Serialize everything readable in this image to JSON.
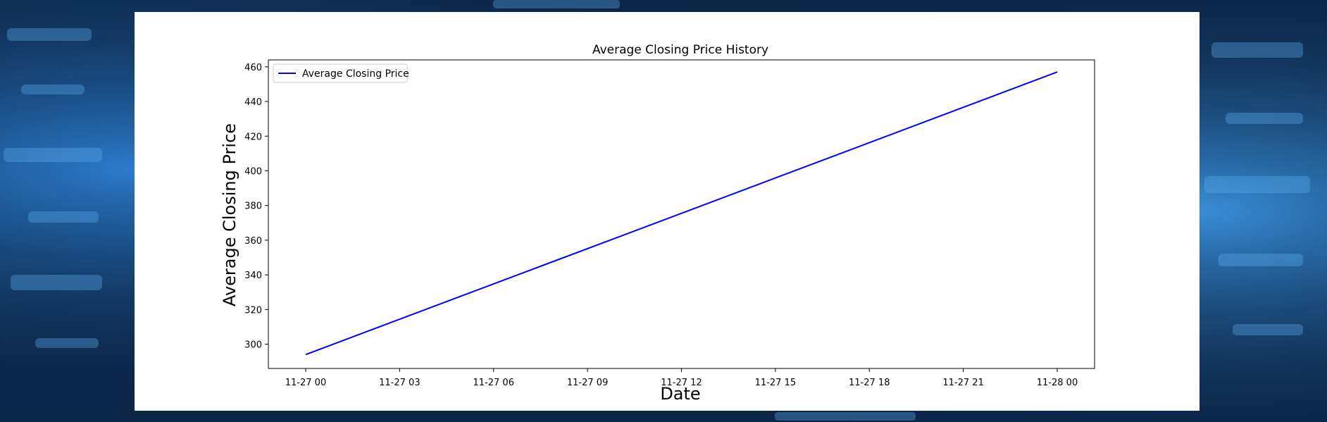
{
  "colors": {
    "series": "#0000ff",
    "background_dark": "#0b2547",
    "background_accent": "#2f86d9"
  },
  "chart_data": {
    "type": "line",
    "title": "Average Closing Price History",
    "xlabel": "Date",
    "ylabel": "Average Closing Price",
    "x_tick_labels": [
      "11-27 00",
      "11-27 03",
      "11-27 06",
      "11-27 09",
      "11-27 12",
      "11-27 15",
      "11-27 18",
      "11-27 21",
      "11-28 00"
    ],
    "y_ticks": [
      300,
      320,
      340,
      360,
      380,
      400,
      420,
      440,
      460
    ],
    "xlim": [
      "11-26 22:48",
      "11-28 01:12"
    ],
    "ylim": [
      286,
      464
    ],
    "legend_position": "top-left",
    "grid": false,
    "series": [
      {
        "name": "Average Closing Price",
        "color": "#0000ff",
        "x": [
          "11-27 00",
          "11-28 00"
        ],
        "y": [
          294,
          457
        ]
      }
    ]
  }
}
